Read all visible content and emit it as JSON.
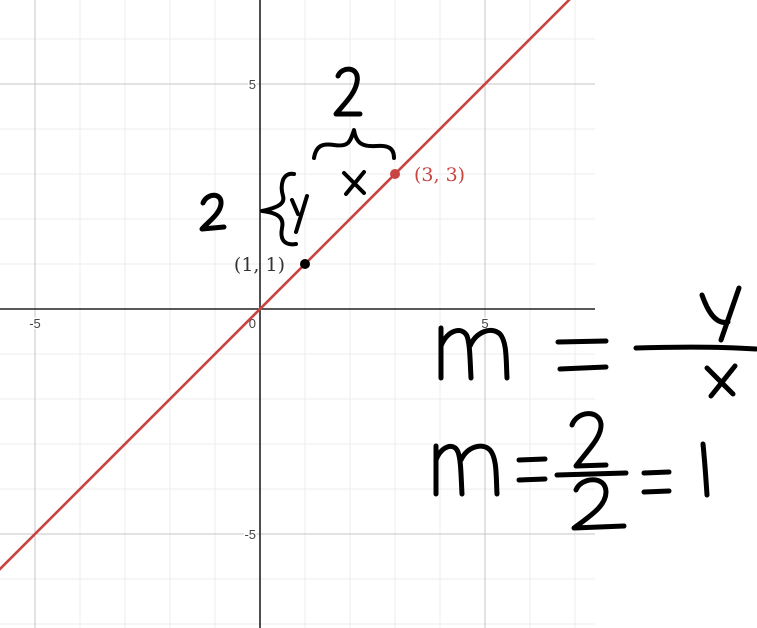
{
  "chart_data": {
    "type": "line",
    "xlim": [
      -5.6,
      7.5
    ],
    "ylim": [
      -7.0,
      7.0
    ],
    "grid": true,
    "x_ticks": [
      -5,
      0,
      5
    ],
    "y_ticks": [
      5,
      -5
    ],
    "x_tick_labels": [
      "-5",
      "0",
      "5"
    ],
    "y_tick_labels": [
      "5",
      "-5"
    ],
    "series": [
      {
        "type": "line",
        "slope": 1,
        "intercept": 0,
        "color": "#c74440"
      }
    ],
    "points": [
      {
        "x": 1,
        "y": 1,
        "label": "(1, 1)",
        "color": "#000000"
      },
      {
        "x": 3,
        "y": 3,
        "label": "(3, 3)",
        "color": "#c74440"
      }
    ]
  },
  "annotations": {
    "rise_value": "2",
    "rise_symbol": "y",
    "run_value": "2",
    "run_symbol": "x",
    "formula_lhs": "m",
    "formula_numerator": "y",
    "formula_denominator": "x",
    "calc_lhs": "m",
    "calc_numerator": "2",
    "calc_denominator": "2",
    "calc_result": "1"
  }
}
